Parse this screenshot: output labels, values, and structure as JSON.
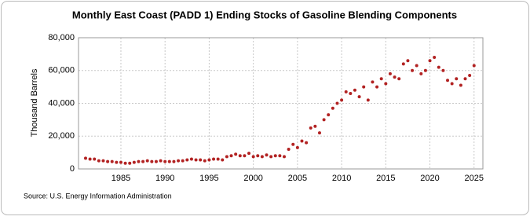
{
  "chart_data": {
    "type": "scatter",
    "title": "Monthly East Coast (PADD 1) Ending Stocks of Gasoline Blending Components",
    "y_label": "Thousand Barrels",
    "source": "Source: U.S. Energy Information Administration",
    "color": "#b22222",
    "grid": true,
    "xlim": [
      1980.2,
      2026
    ],
    "xticks": [
      1985,
      1990,
      1995,
      2000,
      2005,
      2010,
      2015,
      2020,
      2025
    ],
    "ylim": [
      0,
      80000
    ],
    "yticks": [
      0,
      {
        "value": 20000,
        "label": "20,000"
      },
      {
        "value": 40000,
        "label": "40,000"
      },
      {
        "value": 60000,
        "label": "60,000"
      },
      {
        "value": 80000,
        "label": "80,000"
      }
    ],
    "x": [
      1981,
      1981.5,
      1982,
      1982.5,
      1983,
      1983.5,
      1984,
      1984.5,
      1985,
      1985.5,
      1986,
      1986.5,
      1987,
      1987.5,
      1988,
      1988.5,
      1989,
      1989.5,
      1990,
      1990.5,
      1991,
      1991.5,
      1992,
      1992.5,
      1993,
      1993.5,
      1994,
      1994.5,
      1995,
      1995.5,
      1996,
      1996.5,
      1997,
      1997.5,
      1998,
      1998.5,
      1999,
      1999.5,
      2000,
      2000.5,
      2001,
      2001.5,
      2002,
      2002.5,
      2003,
      2003.5,
      2004,
      2004.5,
      2005,
      2005.5,
      2006,
      2006.5,
      2007,
      2007.5,
      2008,
      2008.5,
      2009,
      2009.5,
      2010,
      2010.5,
      2011,
      2011.5,
      2012,
      2012.5,
      2013,
      2013.5,
      2014,
      2014.5,
      2015,
      2015.5,
      2016,
      2016.5,
      2017,
      2017.5,
      2018,
      2018.5,
      2019,
      2019.5,
      2020,
      2020.5,
      2021,
      2021.5,
      2022,
      2022.5,
      2023,
      2023.5,
      2024,
      2024.5,
      2025
    ],
    "values": [
      6500,
      6000,
      6000,
      5000,
      5000,
      4500,
      4500,
      4000,
      4000,
      3500,
      3500,
      4000,
      4500,
      4500,
      5000,
      4500,
      4500,
      5000,
      4500,
      4500,
      4500,
      5000,
      5000,
      5500,
      6000,
      5500,
      5500,
      5000,
      5500,
      6000,
      6000,
      5500,
      7500,
      8000,
      9000,
      8000,
      8000,
      9500,
      7500,
      8000,
      7500,
      8500,
      7500,
      8000,
      8000,
      7500,
      12000,
      15000,
      13000,
      17000,
      16000,
      25000,
      26000,
      22000,
      30000,
      33000,
      37000,
      40000,
      42000,
      47000,
      46000,
      48000,
      44000,
      50000,
      42000,
      53000,
      50000,
      55000,
      52000,
      58000,
      56000,
      55000,
      64000,
      66000,
      60000,
      63000,
      58000,
      60000,
      66000,
      68000,
      62000,
      60000,
      54000,
      52000,
      55000,
      51000,
      55000,
      57000,
      63000
    ]
  }
}
